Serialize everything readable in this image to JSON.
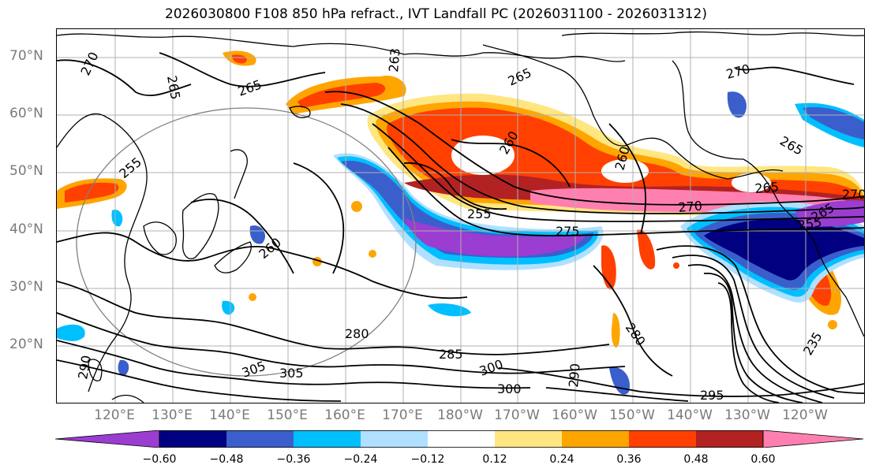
{
  "title": "2026030800 F108 850 hPa refract., IVT Landfall PC (2026031100 - 2026031312)",
  "lat_labels": [
    "70°N",
    "60°N",
    "50°N",
    "40°N",
    "30°N",
    "20°N"
  ],
  "lon_labels": [
    "120°E",
    "130°E",
    "140°E",
    "150°E",
    "160°E",
    "170°E",
    "180°W",
    "170°W",
    "160°W",
    "150°W",
    "140°W",
    "130°W",
    "120°W"
  ],
  "contour_labels": [
    "270",
    "265",
    "265",
    "263",
    "265",
    "270",
    "265",
    "255",
    "260",
    "265",
    "255",
    "260",
    "255",
    "270",
    "265",
    "270",
    "275",
    "260",
    "280",
    "280",
    "285",
    "290",
    "300",
    "300",
    "305",
    "305",
    "290",
    "295",
    "235"
  ],
  "colorbar": {
    "ticks": [
      "−0.60",
      "−0.48",
      "−0.36",
      "−0.24",
      "−0.12",
      "0.12",
      "0.24",
      "0.36",
      "0.48",
      "0.60"
    ],
    "colors": [
      "#9b3dd1",
      "#000080",
      "#3a5fcd",
      "#00bfff",
      "#b0e0ff",
      "#ffffff",
      "#ffe680",
      "#ffa500",
      "#ff4000",
      "#b22222",
      "#ff80b0"
    ]
  }
}
